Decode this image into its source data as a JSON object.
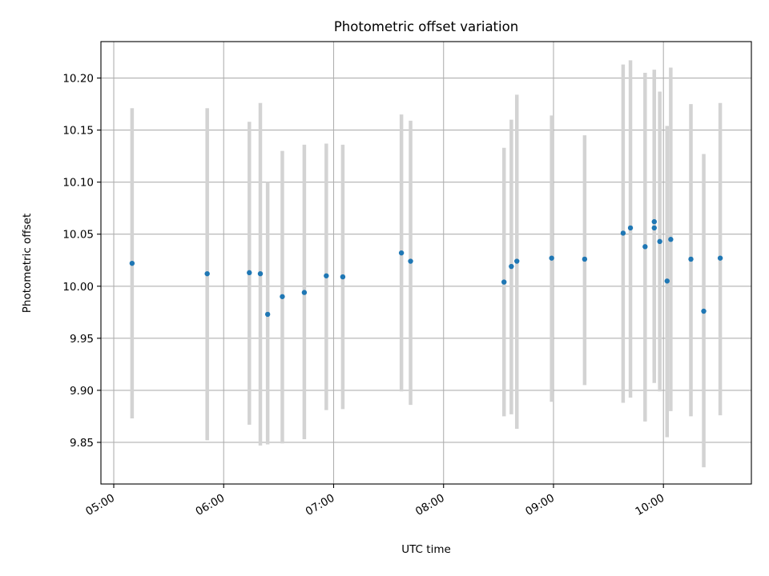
{
  "chart_data": {
    "type": "scatter",
    "title": "Photometric offset variation",
    "xlabel": "UTC time",
    "ylabel": "Photometric offset",
    "grid": true,
    "legend": "none",
    "xlim": [
      "04:53",
      "10:48"
    ],
    "ylim": [
      9.81,
      10.235
    ],
    "x_ticks": [
      "05:00",
      "06:00",
      "07:00",
      "08:00",
      "09:00",
      "10:00"
    ],
    "y_ticks": [
      "9.85",
      "9.90",
      "9.95",
      "10.00",
      "10.05",
      "10.10",
      "10.15",
      "10.20"
    ],
    "colors": {
      "point": "#1f77b4",
      "errorbar": "#d3d3d3",
      "grid": "#b0b0b0"
    },
    "points": [
      {
        "x": "05:10",
        "y": 10.022,
        "y_low": 9.873,
        "y_high": 10.171
      },
      {
        "x": "05:51",
        "y": 10.012,
        "y_low": 9.852,
        "y_high": 10.171
      },
      {
        "x": "06:14",
        "y": 10.013,
        "y_low": 9.867,
        "y_high": 10.158
      },
      {
        "x": "06:20",
        "y": 10.012,
        "y_low": 9.847,
        "y_high": 10.176
      },
      {
        "x": "06:24",
        "y": 9.973,
        "y_low": 9.848,
        "y_high": 10.1
      },
      {
        "x": "06:32",
        "y": 9.99,
        "y_low": 9.849,
        "y_high": 10.13
      },
      {
        "x": "06:44",
        "y": 9.994,
        "y_low": 9.853,
        "y_high": 10.136
      },
      {
        "x": "06:56",
        "y": 10.01,
        "y_low": 9.881,
        "y_high": 10.137
      },
      {
        "x": "07:05",
        "y": 10.009,
        "y_low": 9.882,
        "y_high": 10.136
      },
      {
        "x": "07:37",
        "y": 10.032,
        "y_low": 9.899,
        "y_high": 10.165
      },
      {
        "x": "07:42",
        "y": 10.024,
        "y_low": 9.886,
        "y_high": 10.159
      },
      {
        "x": "08:33",
        "y": 10.004,
        "y_low": 9.875,
        "y_high": 10.133
      },
      {
        "x": "08:37",
        "y": 10.019,
        "y_low": 9.877,
        "y_high": 10.16
      },
      {
        "x": "08:40",
        "y": 10.024,
        "y_low": 9.863,
        "y_high": 10.184
      },
      {
        "x": "08:59",
        "y": 10.027,
        "y_low": 9.889,
        "y_high": 10.164
      },
      {
        "x": "09:17",
        "y": 10.026,
        "y_low": 9.905,
        "y_high": 10.145
      },
      {
        "x": "09:38",
        "y": 10.051,
        "y_low": 9.888,
        "y_high": 10.213
      },
      {
        "x": "09:42",
        "y": 10.056,
        "y_low": 9.893,
        "y_high": 10.217
      },
      {
        "x": "09:50",
        "y": 10.038,
        "y_low": 9.87,
        "y_high": 10.205
      },
      {
        "x": "09:55",
        "y": 10.062,
        "y_low": 9.917,
        "y_high": 10.208
      },
      {
        "x": "09:55",
        "y": 10.056,
        "y_low": 9.907,
        "y_high": 10.205
      },
      {
        "x": "09:58",
        "y": 10.043,
        "y_low": 9.899,
        "y_high": 10.187
      },
      {
        "x": "10:02",
        "y": 10.005,
        "y_low": 9.855,
        "y_high": 10.154
      },
      {
        "x": "10:04",
        "y": 10.045,
        "y_low": 9.88,
        "y_high": 10.21
      },
      {
        "x": "10:15",
        "y": 10.026,
        "y_low": 9.875,
        "y_high": 10.175
      },
      {
        "x": "10:22",
        "y": 9.976,
        "y_low": 9.826,
        "y_high": 10.127
      },
      {
        "x": "10:31",
        "y": 10.027,
        "y_low": 9.876,
        "y_high": 10.176
      }
    ]
  }
}
